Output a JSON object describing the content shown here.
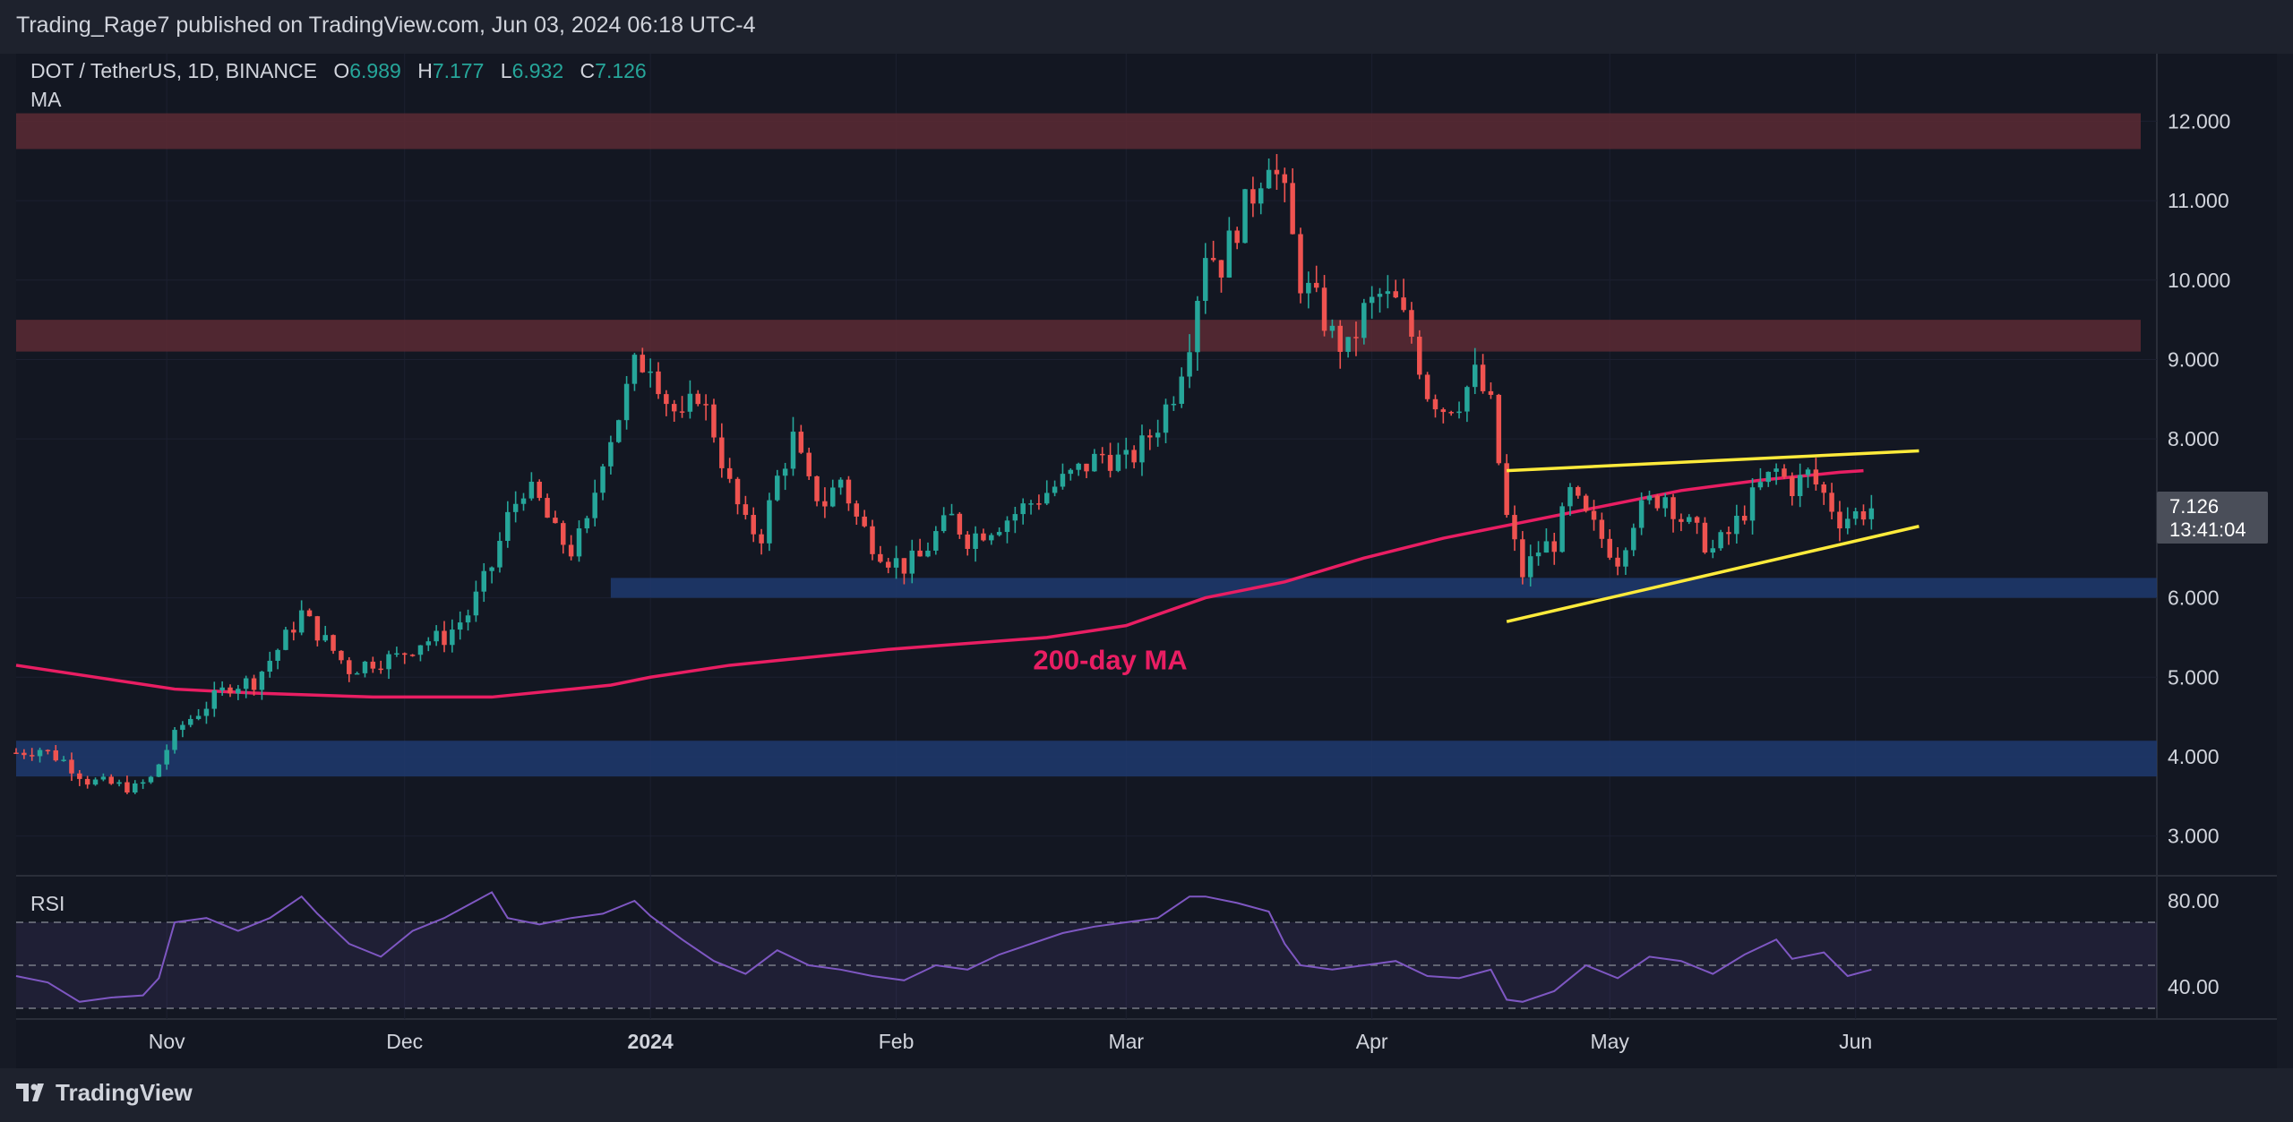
{
  "header": {
    "published": "Trading_Rage7 published on TradingView.com, Jun 03, 2024 06:18 UTC-4"
  },
  "legend": {
    "symbol": "DOT / TetherUS, 1D, BINANCE",
    "open_label": "O",
    "open": "6.989",
    "high_label": "H",
    "high": "7.177",
    "low_label": "L",
    "low": "6.932",
    "close_label": "C",
    "close": "7.126",
    "indicator": "MA"
  },
  "price_badge": {
    "price": "7.126",
    "countdown": "13:41:04"
  },
  "rsi": {
    "label": "RSI",
    "ticks": [
      "80.00",
      "40.00"
    ]
  },
  "footer": {
    "brand": "TradingView"
  },
  "colors": {
    "up": "#26a69a",
    "down": "#ef5350",
    "ma": "#e91e63",
    "wedge": "#ffeb3b",
    "rsi": "#7e57c2",
    "resistance": "#5c2a34",
    "support": "#1f3a6e"
  },
  "chart_data": {
    "type": "candlestick",
    "title": "DOT / TetherUS, 1D, BINANCE",
    "x_tick_labels": [
      "Nov",
      "Dec",
      "2024",
      "Feb",
      "Mar",
      "Apr",
      "May",
      "Jun"
    ],
    "y_tick_labels": [
      "12.000",
      "11.000",
      "10.000",
      "9.000",
      "8.000",
      "6.000",
      "5.000",
      "4.000",
      "3.000"
    ],
    "y_ticks": [
      12,
      11,
      10,
      9,
      8,
      6,
      5,
      4,
      3
    ],
    "ylim": [
      2.5,
      12.85
    ],
    "x_range_days": [
      0,
      270
    ],
    "month_positions_days": {
      "Nov": 19,
      "Dec": 49,
      "2024": 80,
      "Feb": 111,
      "Mar": 140,
      "Apr": 171,
      "May": 201,
      "Jun": 232
    },
    "close_path": [
      [
        0,
        4.05
      ],
      [
        3,
        4.1
      ],
      [
        6,
        3.95
      ],
      [
        9,
        3.7
      ],
      [
        12,
        3.65
      ],
      [
        15,
        3.6
      ],
      [
        17,
        3.72
      ],
      [
        19,
        4.1
      ],
      [
        21,
        4.4
      ],
      [
        24,
        4.65
      ],
      [
        27,
        4.9
      ],
      [
        30,
        4.95
      ],
      [
        33,
        5.35
      ],
      [
        36,
        5.8
      ],
      [
        39,
        5.45
      ],
      [
        42,
        5.1
      ],
      [
        45,
        5.2
      ],
      [
        48,
        5.25
      ],
      [
        51,
        5.45
      ],
      [
        54,
        5.5
      ],
      [
        57,
        5.8
      ],
      [
        60,
        6.4
      ],
      [
        62,
        7.0
      ],
      [
        64,
        7.4
      ],
      [
        66,
        7.2
      ],
      [
        68,
        6.8
      ],
      [
        70,
        6.6
      ],
      [
        72,
        6.9
      ],
      [
        74,
        7.8
      ],
      [
        76,
        8.3
      ],
      [
        78,
        8.9
      ],
      [
        80,
        9.0
      ],
      [
        82,
        8.5
      ],
      [
        84,
        8.2
      ],
      [
        86,
        8.6
      ],
      [
        88,
        8.1
      ],
      [
        90,
        7.4
      ],
      [
        92,
        6.9
      ],
      [
        94,
        6.8
      ],
      [
        96,
        7.5
      ],
      [
        98,
        8.0
      ],
      [
        100,
        7.4
      ],
      [
        102,
        7.2
      ],
      [
        104,
        7.5
      ],
      [
        106,
        7.0
      ],
      [
        108,
        6.7
      ],
      [
        110,
        6.5
      ],
      [
        112,
        6.4
      ],
      [
        114,
        6.5
      ],
      [
        116,
        6.8
      ],
      [
        118,
        7.0
      ],
      [
        120,
        6.75
      ],
      [
        122,
        6.85
      ],
      [
        125,
        7.0
      ],
      [
        128,
        7.2
      ],
      [
        131,
        7.4
      ],
      [
        134,
        7.6
      ],
      [
        137,
        7.8
      ],
      [
        140,
        7.7
      ],
      [
        142,
        7.9
      ],
      [
        144,
        8.2
      ],
      [
        146,
        8.6
      ],
      [
        148,
        9.3
      ],
      [
        150,
        10.4
      ],
      [
        152,
        10.2
      ],
      [
        154,
        10.7
      ],
      [
        156,
        11.1
      ],
      [
        158,
        11.6
      ],
      [
        160,
        11.0
      ],
      [
        162,
        10.0
      ],
      [
        164,
        9.7
      ],
      [
        166,
        9.3
      ],
      [
        168,
        9.1
      ],
      [
        170,
        9.6
      ],
      [
        172,
        9.8
      ],
      [
        174,
        9.7
      ],
      [
        176,
        9.3
      ],
      [
        178,
        8.6
      ],
      [
        180,
        8.4
      ],
      [
        182,
        8.5
      ],
      [
        184,
        8.8
      ],
      [
        186,
        8.4
      ],
      [
        188,
        7.0
      ],
      [
        190,
        6.3
      ],
      [
        192,
        6.6
      ],
      [
        194,
        6.7
      ],
      [
        196,
        7.3
      ],
      [
        198,
        7.0
      ],
      [
        200,
        6.75
      ],
      [
        202,
        6.5
      ],
      [
        204,
        7.0
      ],
      [
        206,
        7.2
      ],
      [
        208,
        7.3
      ],
      [
        210,
        7.0
      ],
      [
        212,
        6.8
      ],
      [
        214,
        6.6
      ],
      [
        216,
        6.8
      ],
      [
        218,
        7.1
      ],
      [
        220,
        7.4
      ],
      [
        222,
        7.6
      ],
      [
        224,
        7.4
      ],
      [
        226,
        7.55
      ],
      [
        228,
        7.3
      ],
      [
        230,
        7.0
      ],
      [
        232,
        7.05
      ],
      [
        234,
        7.13
      ]
    ],
    "ma200_path": [
      [
        0,
        5.15
      ],
      [
        20,
        4.85
      ],
      [
        30,
        4.8
      ],
      [
        45,
        4.75
      ],
      [
        60,
        4.75
      ],
      [
        75,
        4.9
      ],
      [
        80,
        5.0
      ],
      [
        90,
        5.15
      ],
      [
        110,
        5.35
      ],
      [
        130,
        5.5
      ],
      [
        140,
        5.65
      ],
      [
        150,
        6.0
      ],
      [
        160,
        6.2
      ],
      [
        170,
        6.5
      ],
      [
        180,
        6.75
      ],
      [
        190,
        6.95
      ],
      [
        200,
        7.15
      ],
      [
        210,
        7.35
      ],
      [
        220,
        7.48
      ],
      [
        230,
        7.58
      ],
      [
        233,
        7.6
      ]
    ],
    "resistance_zones": [
      [
        11.65,
        12.1
      ],
      [
        9.1,
        9.5
      ]
    ],
    "support_zones": [
      [
        6.0,
        6.25
      ],
      [
        3.75,
        4.2
      ]
    ],
    "wedge_upper": [
      [
        188,
        7.6
      ],
      [
        240,
        7.85
      ]
    ],
    "wedge_lower": [
      [
        188,
        5.7
      ],
      [
        240,
        6.9
      ]
    ],
    "annotations": [
      {
        "text": "200-day MA",
        "x": 138,
        "y": 5.1
      }
    ],
    "rsi": {
      "ylim": [
        25,
        90
      ],
      "levels": [
        70,
        50,
        30
      ],
      "ticks": [
        80,
        40
      ],
      "values": [
        [
          0,
          45
        ],
        [
          4,
          42
        ],
        [
          8,
          33
        ],
        [
          12,
          35
        ],
        [
          16,
          36
        ],
        [
          18,
          44
        ],
        [
          20,
          70
        ],
        [
          24,
          72
        ],
        [
          28,
          66
        ],
        [
          32,
          72
        ],
        [
          36,
          82
        ],
        [
          38,
          74
        ],
        [
          42,
          60
        ],
        [
          46,
          54
        ],
        [
          50,
          66
        ],
        [
          54,
          72
        ],
        [
          58,
          80
        ],
        [
          60,
          84
        ],
        [
          62,
          72
        ],
        [
          66,
          69
        ],
        [
          70,
          72
        ],
        [
          74,
          74
        ],
        [
          78,
          80
        ],
        [
          80,
          73
        ],
        [
          84,
          62
        ],
        [
          88,
          52
        ],
        [
          92,
          46
        ],
        [
          96,
          57
        ],
        [
          100,
          50
        ],
        [
          104,
          48
        ],
        [
          108,
          45
        ],
        [
          112,
          43
        ],
        [
          116,
          50
        ],
        [
          120,
          48
        ],
        [
          124,
          55
        ],
        [
          128,
          60
        ],
        [
          132,
          65
        ],
        [
          136,
          68
        ],
        [
          140,
          70
        ],
        [
          144,
          72
        ],
        [
          148,
          82
        ],
        [
          150,
          82
        ],
        [
          154,
          79
        ],
        [
          158,
          75
        ],
        [
          160,
          60
        ],
        [
          162,
          50
        ],
        [
          166,
          48
        ],
        [
          170,
          50
        ],
        [
          174,
          52
        ],
        [
          178,
          45
        ],
        [
          182,
          44
        ],
        [
          186,
          48
        ],
        [
          188,
          34
        ],
        [
          190,
          33
        ],
        [
          194,
          38
        ],
        [
          198,
          50
        ],
        [
          202,
          44
        ],
        [
          206,
          54
        ],
        [
          210,
          52
        ],
        [
          214,
          46
        ],
        [
          218,
          55
        ],
        [
          222,
          62
        ],
        [
          224,
          53
        ],
        [
          228,
          56
        ],
        [
          231,
          45
        ],
        [
          234,
          48
        ]
      ]
    }
  }
}
